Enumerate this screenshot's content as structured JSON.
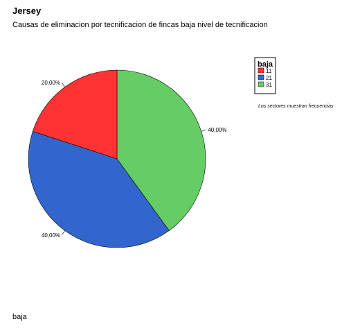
{
  "heading": "Jersey",
  "subtitle": "Causas de eliminacion por tecnificacion de fincas baja nivel de  tecnificacion",
  "footer": "baja",
  "chart_data": {
    "type": "pie",
    "slices": [
      {
        "label": "31",
        "value": 40.0,
        "pct_label": "40,00%",
        "color": "#66cc66"
      },
      {
        "label": "21",
        "value": 40.0,
        "pct_label": "40,00%",
        "color": "#3366cc"
      },
      {
        "label": "11",
        "value": 20.0,
        "pct_label": "20,00%",
        "color": "#ff3333"
      }
    ],
    "legend": {
      "title": "baja",
      "position": "top-right",
      "entries": [
        {
          "label": "11",
          "color": "#ff3333"
        },
        {
          "label": "21",
          "color": "#3366cc"
        },
        {
          "label": "31",
          "color": "#66cc66"
        }
      ]
    },
    "note": "Los sectores muestran frecuencias",
    "start_angle_deg": 0,
    "direction": "clockwise"
  }
}
